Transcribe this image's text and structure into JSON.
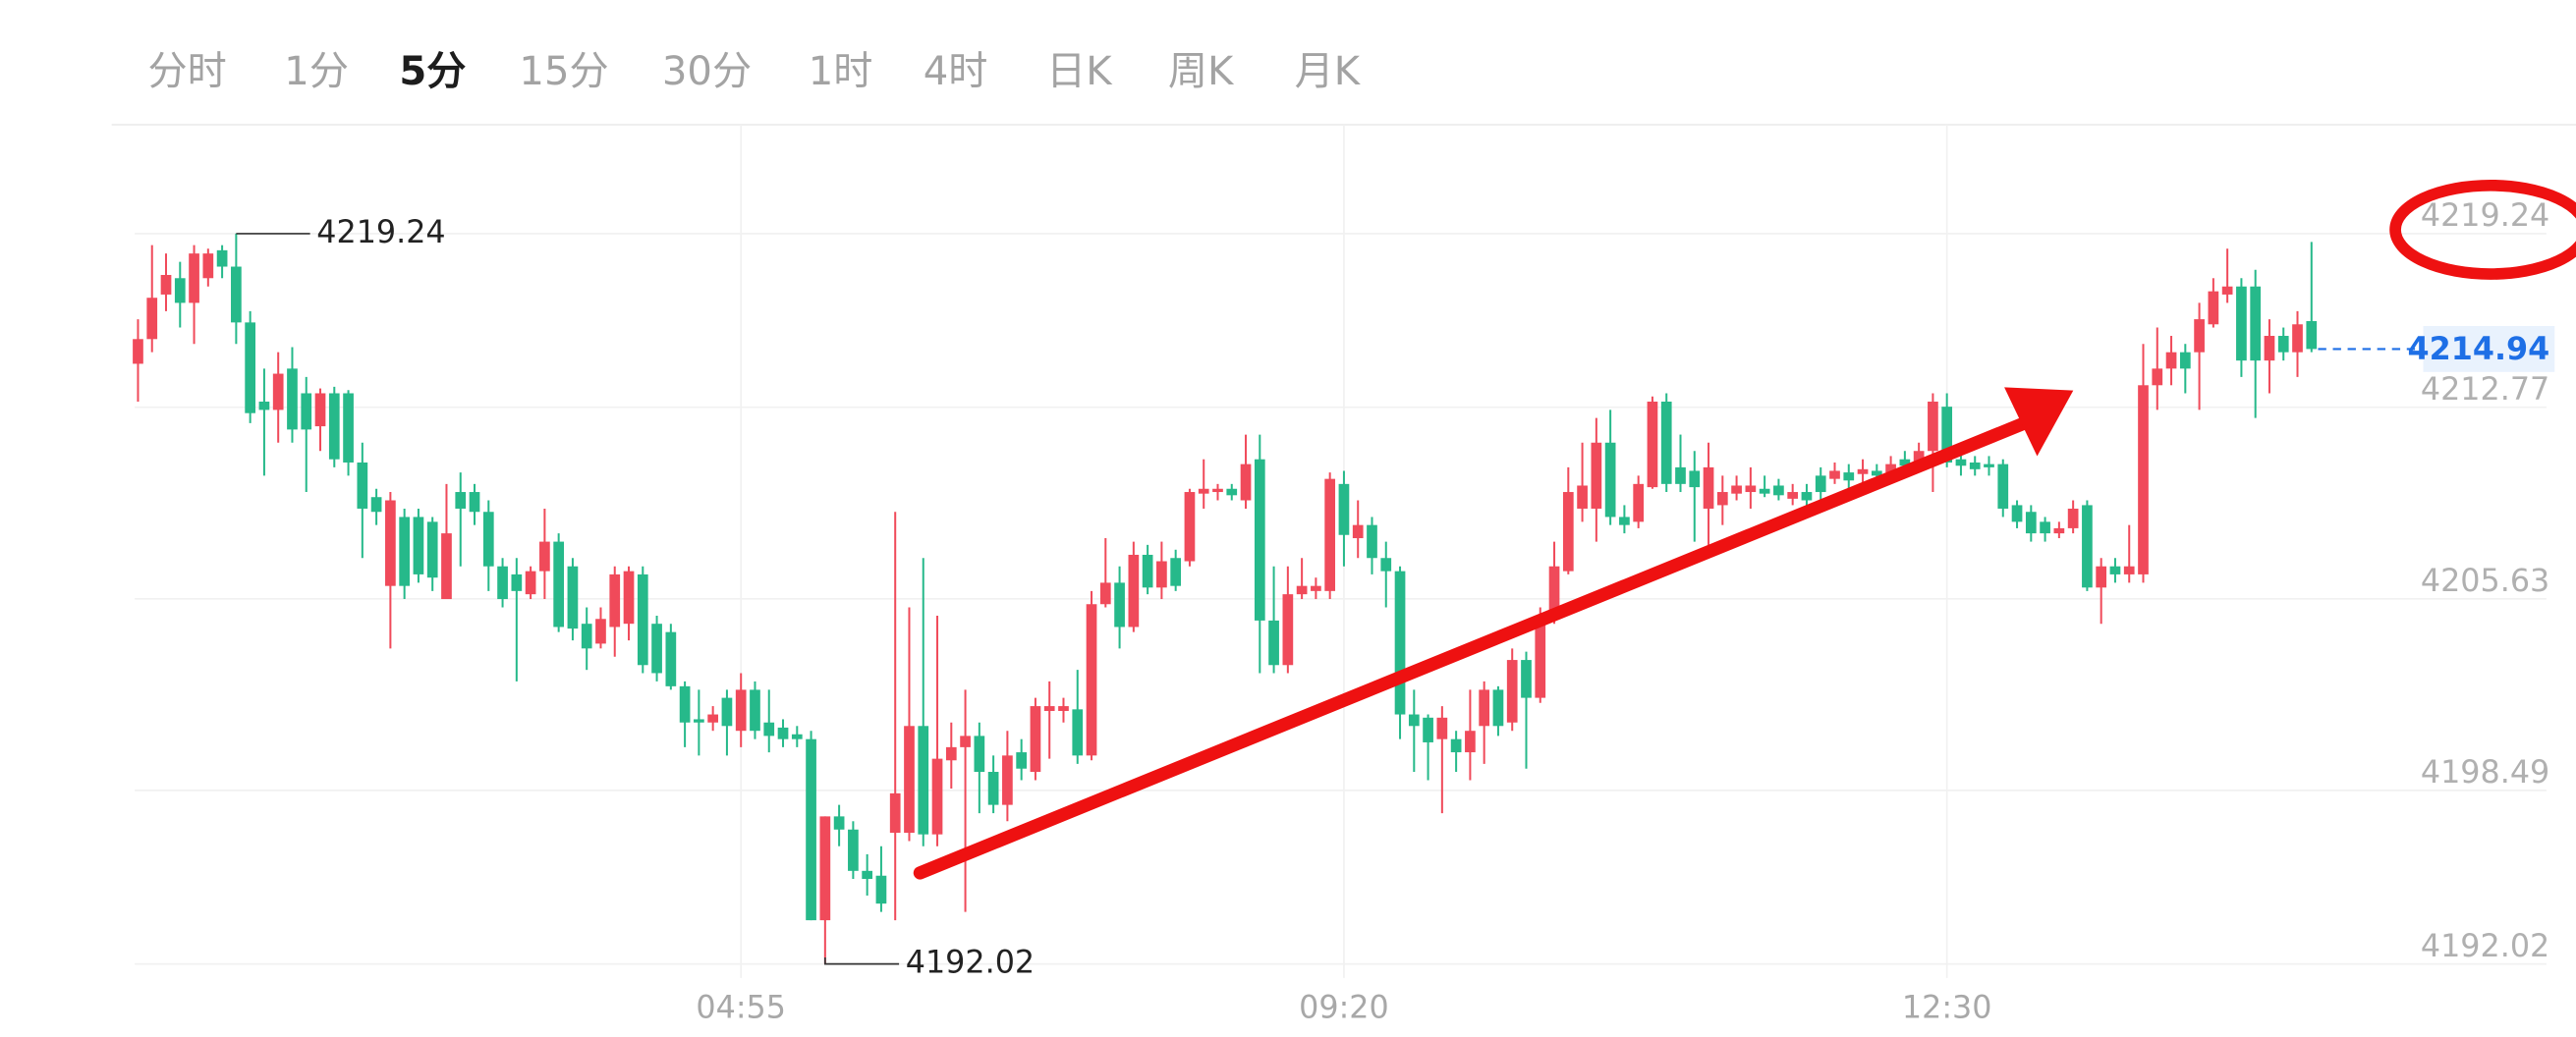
{
  "tabs": [
    "分时",
    "1分",
    "5分",
    "15分",
    "30分",
    "1时",
    "4时",
    "日K",
    "周K",
    "月K"
  ],
  "active_tab": 2,
  "chart_data": {
    "type": "candlestick",
    "up_color": "#f04a5a",
    "down_color": "#26b98a",
    "last_price_color": "#1e6fe6",
    "grid": true,
    "ylim": [
      4191.5,
      4223.3
    ],
    "yticks": [
      4219.24,
      4212.77,
      4205.63,
      4198.49,
      4192.02
    ],
    "categories": [
      null,
      null,
      null,
      null,
      null,
      null,
      null,
      null,
      null,
      null,
      null,
      null,
      null,
      null,
      null,
      null,
      null,
      null,
      null,
      null,
      null,
      null,
      null,
      null,
      null,
      null,
      null,
      null,
      null,
      null,
      null,
      null,
      null,
      null,
      null,
      null,
      null,
      null,
      null,
      null,
      null,
      null,
      null,
      "04:55",
      null,
      null,
      null,
      null,
      null,
      null,
      null,
      null,
      null,
      null,
      null,
      null,
      null,
      null,
      null,
      null,
      null,
      null,
      null,
      null,
      null,
      null,
      null,
      null,
      null,
      null,
      null,
      null,
      null,
      null,
      null,
      null,
      null,
      null,
      null,
      null,
      null,
      null,
      null,
      null,
      null,
      null,
      "09:20",
      null,
      null,
      null,
      null,
      null,
      null,
      null,
      null,
      null,
      null,
      null,
      null,
      null,
      null,
      null,
      null,
      null,
      null,
      null,
      null,
      null,
      null,
      null,
      null,
      null,
      null,
      null,
      null,
      null,
      null,
      null,
      null,
      null,
      null,
      null,
      null,
      null,
      null,
      null,
      null,
      null,
      null,
      "12:30",
      null,
      null,
      null,
      null,
      null,
      null,
      null,
      null,
      null,
      null,
      null,
      null,
      null,
      null,
      null,
      null,
      null,
      null,
      null,
      null,
      null,
      null,
      null,
      null,
      null,
      null
    ],
    "open": [
      4214.39,
      4215.31,
      4216.97,
      4217.58,
      4216.66,
      4217.58,
      4218.62,
      4218.01,
      4215.93,
      4212.98,
      4212.67,
      4214.21,
      4213.29,
      4212.06,
      4213.29,
      4213.29,
      4210.71,
      4209.42,
      4206.11,
      4208.68,
      4208.68,
      4208.5,
      4205.62,
      4209.61,
      4209.61,
      4208.87,
      4206.84,
      4206.54,
      4205.8,
      4206.66,
      4207.76,
      4206.84,
      4204.7,
      4203.96,
      4204.58,
      4204.7,
      4206.54,
      4204.7,
      4204.39,
      4202.37,
      4201.14,
      4201.02,
      4201.94,
      4200.71,
      4202.24,
      4201.02,
      4200.83,
      4200.58,
      4200.4,
      4193.65,
      4197.52,
      4197.03,
      4195.49,
      4195.31,
      4196.91,
      4196.91,
      4200.89,
      4196.85,
      4199.61,
      4200.1,
      4200.52,
      4199.18,
      4197.95,
      4199.91,
      4199.18,
      4201.45,
      4201.45,
      4201.51,
      4199.79,
      4205.43,
      4206.23,
      4204.58,
      4207.27,
      4206.05,
      4207.15,
      4207.03,
      4209.55,
      4209.61,
      4209.73,
      4209.3,
      4210.83,
      4204.82,
      4203.16,
      4205.8,
      4205.92,
      4205.92,
      4209.91,
      4207.89,
      4208.38,
      4207.15,
      4206.66,
      4201.32,
      4201.2,
      4200.4,
      4200.4,
      4199.91,
      4200.89,
      4202.24,
      4201.02,
      4203.35,
      4201.94,
      4205.0,
      4206.66,
      4208.99,
      4208.99,
      4211.45,
      4208.68,
      4208.5,
      4209.79,
      4212.98,
      4210.53,
      4210.4,
      4208.99,
      4209.12,
      4209.55,
      4209.61,
      4209.73,
      4209.85,
      4209.36,
      4209.61,
      4210.22,
      4210.1,
      4210.34,
      4210.28,
      4210.4,
      4210.34,
      4210.83,
      4210.71,
      4211.14,
      4212.79,
      4210.83,
      4210.71,
      4210.65,
      4210.65,
      4209.12,
      4208.87,
      4208.5,
      4208.07,
      4208.26,
      4209.12,
      4206.05,
      4206.84,
      4206.54,
      4206.54,
      4213.59,
      4214.21,
      4214.82,
      4214.82,
      4215.86,
      4216.97,
      4217.27,
      4217.27,
      4214.51,
      4215.43,
      4214.82,
      4215.98
    ],
    "high": [
      4216.05,
      4218.81,
      4218.5,
      4218.19,
      4218.81,
      4218.68,
      4218.81,
      4219.24,
      4216.35,
      4214.21,
      4214.82,
      4215.01,
      4213.9,
      4213.47,
      4213.53,
      4213.41,
      4211.45,
      4209.73,
      4209.61,
      4208.99,
      4208.99,
      4208.68,
      4209.91,
      4210.34,
      4209.91,
      4209.3,
      4207.15,
      4207.15,
      4206.84,
      4208.99,
      4208.07,
      4207.15,
      4205.31,
      4205.31,
      4206.84,
      4206.84,
      4206.84,
      4205.0,
      4204.7,
      4202.55,
      4202.24,
      4201.63,
      4202.24,
      4202.86,
      4202.55,
      4202.24,
      4201.14,
      4200.89,
      4200.71,
      4197.52,
      4197.95,
      4197.34,
      4196.11,
      4196.41,
      4208.87,
      4205.31,
      4207.15,
      4205.0,
      4201.02,
      4202.24,
      4201.02,
      4199.79,
      4200.71,
      4200.4,
      4201.94,
      4202.55,
      4201.94,
      4202.98,
      4205.92,
      4207.89,
      4206.84,
      4207.76,
      4207.64,
      4207.76,
      4207.46,
      4209.73,
      4210.83,
      4209.91,
      4209.91,
      4211.75,
      4211.75,
      4206.84,
      4206.84,
      4207.15,
      4206.42,
      4210.34,
      4210.4,
      4209.3,
      4208.68,
      4207.76,
      4206.84,
      4202.24,
      4201.32,
      4201.63,
      4200.71,
      4202.24,
      4202.55,
      4202.37,
      4203.78,
      4203.66,
      4205.31,
      4207.76,
      4210.53,
      4211.45,
      4212.37,
      4212.67,
      4209.12,
      4210.22,
      4213.17,
      4213.29,
      4211.75,
      4211.14,
      4211.45,
      4210.22,
      4210.22,
      4210.53,
      4210.22,
      4210.1,
      4209.91,
      4209.91,
      4210.53,
      4210.71,
      4210.65,
      4210.83,
      4210.65,
      4210.95,
      4211.14,
      4211.45,
      4213.29,
      4213.29,
      4211.33,
      4210.95,
      4210.95,
      4210.83,
      4209.3,
      4209.12,
      4208.68,
      4208.5,
      4209.3,
      4209.3,
      4207.15,
      4207.15,
      4208.38,
      4215.13,
      4215.74,
      4215.43,
      4215.13,
      4216.66,
      4217.58,
      4218.68,
      4217.58,
      4217.89,
      4216.05,
      4215.74,
      4216.35,
      4218.93
    ],
    "low": [
      4212.98,
      4214.82,
      4216.35,
      4215.74,
      4215.13,
      4217.27,
      4217.58,
      4215.13,
      4212.18,
      4210.22,
      4211.45,
      4211.45,
      4209.61,
      4211.14,
      4210.53,
      4210.22,
      4207.15,
      4208.38,
      4203.78,
      4205.62,
      4206.23,
      4205.92,
      4205.62,
      4206.84,
      4208.38,
      4205.92,
      4205.31,
      4202.55,
      4205.62,
      4205.62,
      4204.39,
      4204.08,
      4202.98,
      4203.78,
      4203.47,
      4204.08,
      4202.86,
      4202.55,
      4202.24,
      4200.1,
      4199.79,
      4200.71,
      4199.79,
      4200.1,
      4200.4,
      4199.91,
      4200.1,
      4200.1,
      4193.65,
      4192.02,
      4196.41,
      4195.19,
      4194.57,
      4193.96,
      4193.65,
      4196.6,
      4196.41,
      4196.41,
      4198.56,
      4193.96,
      4197.64,
      4197.64,
      4197.34,
      4198.87,
      4198.87,
      4199.67,
      4201.02,
      4199.48,
      4199.61,
      4205.31,
      4203.78,
      4204.39,
      4205.8,
      4205.62,
      4205.92,
      4206.84,
      4208.99,
      4209.3,
      4209.3,
      4208.99,
      4202.86,
      4202.86,
      4202.86,
      4205.62,
      4205.62,
      4205.62,
      4206.84,
      4207.15,
      4206.54,
      4205.31,
      4200.4,
      4199.18,
      4198.87,
      4197.64,
      4199.18,
      4198.87,
      4199.48,
      4200.52,
      4200.71,
      4199.3,
      4201.75,
      4204.7,
      4206.54,
      4208.5,
      4207.76,
      4208.38,
      4208.07,
      4208.26,
      4209.73,
      4209.61,
      4209.61,
      4207.76,
      4207.15,
      4208.38,
      4209.3,
      4208.99,
      4209.42,
      4209.3,
      4209.12,
      4208.99,
      4209.3,
      4209.91,
      4209.73,
      4209.91,
      4209.91,
      4210.1,
      4210.22,
      4210.34,
      4209.61,
      4210.53,
      4210.22,
      4210.22,
      4210.22,
      4208.68,
      4208.26,
      4207.76,
      4207.76,
      4207.89,
      4208.07,
      4205.92,
      4204.7,
      4206.23,
      4206.23,
      4206.23,
      4212.67,
      4213.59,
      4213.29,
      4212.67,
      4215.74,
      4216.66,
      4213.9,
      4212.37,
      4213.29,
      4214.51,
      4213.9,
      4214.82
    ],
    "close": [
      4215.31,
      4216.85,
      4217.7,
      4216.66,
      4218.5,
      4218.5,
      4218.01,
      4215.93,
      4212.55,
      4212.67,
      4214.02,
      4211.94,
      4211.94,
      4213.29,
      4210.83,
      4210.71,
      4208.99,
      4208.87,
      4209.3,
      4206.11,
      4206.54,
      4206.42,
      4208.07,
      4208.99,
      4208.87,
      4206.84,
      4205.62,
      4205.92,
      4206.66,
      4207.76,
      4204.58,
      4204.52,
      4203.78,
      4204.88,
      4206.54,
      4206.66,
      4203.16,
      4202.86,
      4202.37,
      4201.02,
      4201.02,
      4201.32,
      4200.89,
      4202.24,
      4200.71,
      4200.52,
      4200.4,
      4200.4,
      4193.65,
      4197.52,
      4197.03,
      4195.49,
      4195.19,
      4194.27,
      4198.38,
      4200.89,
      4196.85,
      4199.67,
      4200.1,
      4200.52,
      4199.18,
      4197.95,
      4199.79,
      4199.3,
      4201.63,
      4201.63,
      4201.63,
      4199.79,
      4205.43,
      4206.23,
      4204.58,
      4207.27,
      4206.05,
      4207.03,
      4206.11,
      4209.61,
      4209.73,
      4209.73,
      4209.49,
      4210.65,
      4204.82,
      4203.16,
      4205.8,
      4206.11,
      4206.11,
      4210.1,
      4208.01,
      4208.38,
      4207.15,
      4206.66,
      4201.32,
      4200.89,
      4200.28,
      4201.2,
      4199.91,
      4200.71,
      4202.24,
      4200.89,
      4203.35,
      4201.94,
      4205.0,
      4206.84,
      4209.61,
      4209.85,
      4211.45,
      4208.68,
      4208.38,
      4209.91,
      4212.98,
      4209.91,
      4209.91,
      4209.79,
      4210.53,
      4209.61,
      4209.85,
      4209.85,
      4209.55,
      4209.49,
      4209.61,
      4209.3,
      4209.61,
      4210.4,
      4210.04,
      4210.46,
      4210.22,
      4210.65,
      4210.59,
      4211.14,
      4212.98,
      4210.71,
      4210.59,
      4210.46,
      4210.53,
      4208.99,
      4208.5,
      4208.07,
      4208.07,
      4208.26,
      4208.99,
      4206.05,
      4206.84,
      4206.54,
      4206.84,
      4213.59,
      4214.21,
      4214.82,
      4214.21,
      4216.05,
      4217.09,
      4217.27,
      4214.51,
      4214.51,
      4215.43,
      4214.82,
      4215.86,
      4214.94
    ]
  }
}
